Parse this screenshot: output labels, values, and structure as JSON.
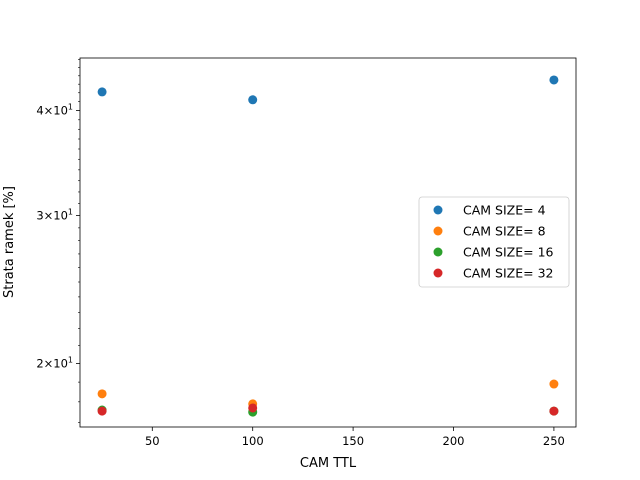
{
  "chart_data": {
    "type": "scatter",
    "title": "",
    "xlabel": "CAM TTL",
    "ylabel": "Strata ramek [%]",
    "xlim": [
      14,
      261
    ],
    "ylim": [
      16.8,
      46.2
    ],
    "yscale": "log",
    "grid": false,
    "legend_position": "center-right",
    "x_ticks": [
      50,
      100,
      150,
      200,
      250
    ],
    "y_ticks": [
      {
        "value": 20,
        "base": "2",
        "mult": "×",
        "exp_base": "10",
        "exp": "1"
      },
      {
        "value": 30,
        "base": "3",
        "mult": "×",
        "exp_base": "10",
        "exp": "1"
      },
      {
        "value": 40,
        "base": "4",
        "mult": "×",
        "exp_base": "10",
        "exp": "1"
      }
    ],
    "series": [
      {
        "name": "CAM SIZE= 4",
        "color": "#1f77b4",
        "x": [
          25,
          100,
          250
        ],
        "y": [
          42.1,
          41.2,
          43.5
        ]
      },
      {
        "name": "CAM SIZE= 8",
        "color": "#ff7f0e",
        "x": [
          25,
          100,
          250
        ],
        "y": [
          18.4,
          17.9,
          18.9
        ]
      },
      {
        "name": "CAM SIZE= 16",
        "color": "#2ca02c",
        "x": [
          25,
          100,
          250
        ],
        "y": [
          17.6,
          17.5,
          17.55
        ]
      },
      {
        "name": "CAM SIZE= 32",
        "color": "#d62728",
        "x": [
          25,
          100,
          250
        ],
        "y": [
          17.55,
          17.7,
          17.55
        ]
      }
    ]
  }
}
